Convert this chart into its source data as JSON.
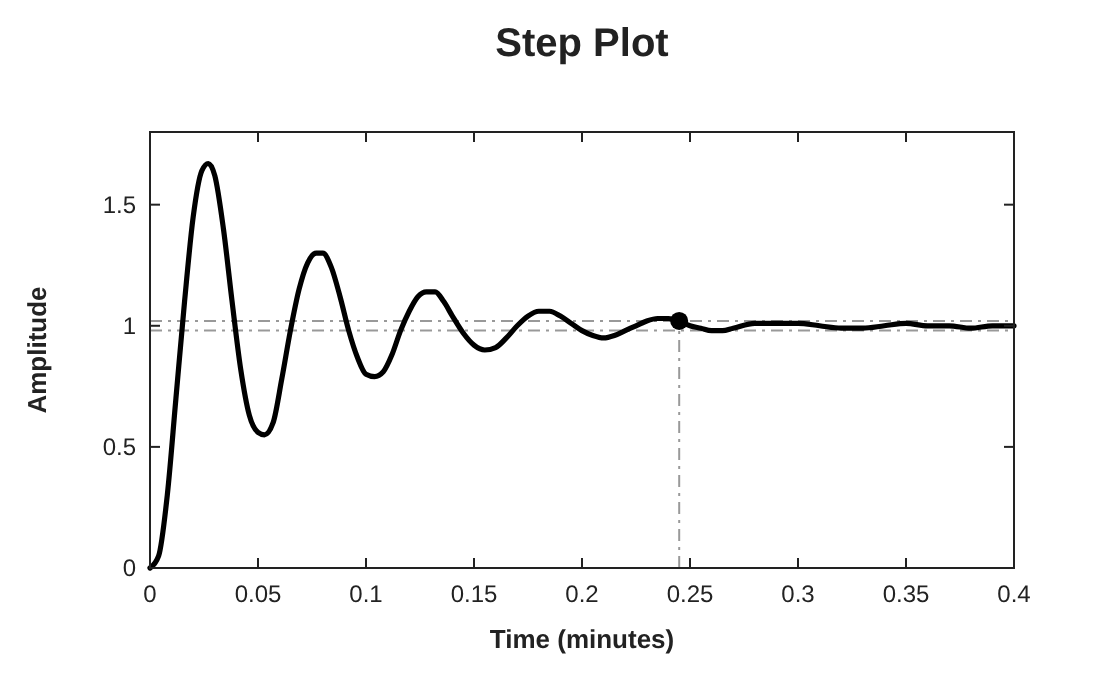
{
  "chart_data": {
    "type": "line",
    "title": "Step Plot",
    "xlabel": "Time (minutes)",
    "ylabel": "Amplitude",
    "xlim": [
      0,
      0.4
    ],
    "xticks": [
      0,
      0.05,
      0.1,
      0.15,
      0.2,
      0.25,
      0.3,
      0.35,
      0.4
    ],
    "ylim": [
      0,
      1.8
    ],
    "yticks": [
      0,
      0.5,
      1,
      1.5
    ],
    "grid": false,
    "series": [
      {
        "color": "#000000",
        "line_style": "solid",
        "marker": "none",
        "x": [
          0,
          0.004,
          0.008,
          0.012,
          0.016,
          0.02,
          0.024,
          0.027,
          0.03,
          0.034,
          0.038,
          0.042,
          0.046,
          0.05,
          0.053,
          0.057,
          0.061,
          0.065,
          0.069,
          0.073,
          0.077,
          0.08,
          0.084,
          0.088,
          0.092,
          0.096,
          0.1,
          0.104,
          0.108,
          0.112,
          0.116,
          0.12,
          0.124,
          0.128,
          0.132,
          0.136,
          0.14,
          0.145,
          0.15,
          0.155,
          0.16,
          0.165,
          0.17,
          0.175,
          0.18,
          0.185,
          0.19,
          0.195,
          0.2,
          0.205,
          0.21,
          0.215,
          0.22,
          0.225,
          0.23,
          0.235,
          0.24,
          0.245,
          0.25,
          0.255,
          0.26,
          0.265,
          0.27,
          0.28,
          0.29,
          0.3,
          0.31,
          0.32,
          0.33,
          0.34,
          0.35,
          0.36,
          0.37,
          0.38,
          0.39,
          0.4
        ],
        "values": [
          0,
          0.05,
          0.3,
          0.7,
          1.1,
          1.45,
          1.64,
          1.67,
          1.62,
          1.4,
          1.1,
          0.82,
          0.63,
          0.56,
          0.55,
          0.6,
          0.78,
          0.98,
          1.15,
          1.26,
          1.3,
          1.3,
          1.24,
          1.12,
          0.98,
          0.87,
          0.8,
          0.79,
          0.81,
          0.88,
          0.98,
          1.06,
          1.12,
          1.14,
          1.14,
          1.1,
          1.04,
          0.97,
          0.92,
          0.9,
          0.91,
          0.95,
          1,
          1.04,
          1.06,
          1.06,
          1.04,
          1.01,
          0.98,
          0.96,
          0.95,
          0.96,
          0.98,
          1,
          1.02,
          1.03,
          1.03,
          1.02,
          1,
          0.99,
          0.98,
          0.98,
          0.99,
          1.01,
          1.01,
          1.01,
          1,
          0.99,
          0.99,
          1,
          1.01,
          1,
          1,
          0.99,
          1,
          1
        ]
      },
      {
        "type": "scatter",
        "color": "#000000",
        "marker": "circle",
        "x": [
          0.245
        ],
        "values": [
          1.02
        ]
      }
    ],
    "ref_lines": [
      {
        "axis": "y",
        "value": 1.02,
        "color": "#999999",
        "line_style": "dashed"
      },
      {
        "axis": "y",
        "value": 0.98,
        "color": "#999999",
        "line_style": "dashed"
      },
      {
        "axis": "x",
        "value": 0.245,
        "color": "#999999",
        "line_style": "dashed"
      }
    ]
  }
}
